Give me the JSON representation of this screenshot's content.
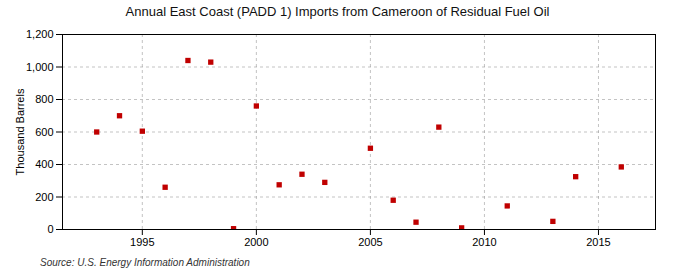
{
  "chart_data": {
    "type": "scatter",
    "title": "Annual East Coast (PADD 1) Imports from Cameroon of Residual Fuel Oil",
    "ylabel": "Thousand Barrels",
    "annotations": [
      "Source: U.S. Energy Information Administration"
    ],
    "x": [
      1993,
      1994,
      1995,
      1996,
      1997,
      1998,
      1999,
      2000,
      2001,
      2002,
      2003,
      2005,
      2006,
      2007,
      2008,
      2009,
      2011,
      2013,
      2014,
      2016
    ],
    "values": [
      600,
      700,
      605,
      260,
      1040,
      1030,
      5,
      760,
      275,
      340,
      290,
      500,
      180,
      45,
      630,
      10,
      145,
      50,
      325,
      385
    ],
    "color": "#c00000",
    "marker": "square",
    "xlim": [
      1991.5,
      2017.5
    ],
    "xticks": [
      1995,
      2000,
      2005,
      2010,
      2015
    ],
    "ylim": [
      0,
      1200
    ],
    "yticks": [
      0,
      200,
      400,
      600,
      800,
      {
        "value": 1000,
        "label": "1,000"
      },
      {
        "value": 1200,
        "label": "1,200"
      }
    ],
    "grid": true
  }
}
